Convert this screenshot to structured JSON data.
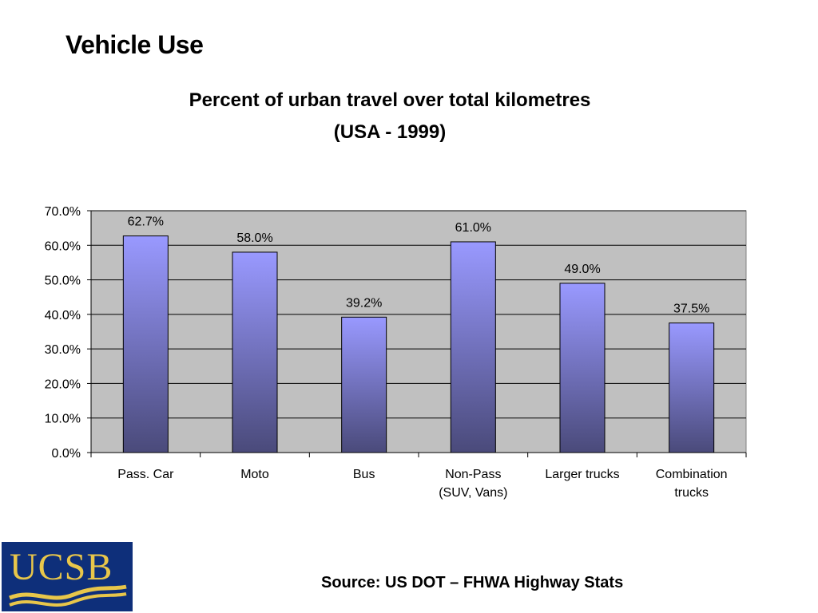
{
  "slide": {
    "title": "Vehicle Use"
  },
  "chart_data": {
    "type": "bar",
    "title_lines": [
      "Percent of urban travel over total kilometres",
      "(USA - 1999)"
    ],
    "categories": [
      "Pass. Car",
      "Moto",
      "Bus",
      "Non-Pass (SUV, Vans)",
      "Larger trucks",
      "Combination trucks"
    ],
    "category_label_lines": [
      [
        "Pass. Car"
      ],
      [
        "Moto"
      ],
      [
        "Bus"
      ],
      [
        "Non-Pass",
        "(SUV, Vans)"
      ],
      [
        "Larger trucks"
      ],
      [
        "Combination",
        "trucks"
      ]
    ],
    "values": [
      62.7,
      58.0,
      39.2,
      61.0,
      49.0,
      37.5
    ],
    "data_labels": [
      "62.7%",
      "58.0%",
      "39.2%",
      "61.0%",
      "49.0%",
      "37.5%"
    ],
    "yticks": [
      0,
      10,
      20,
      30,
      40,
      50,
      60,
      70
    ],
    "ytick_labels": [
      "0.0%",
      "10.0%",
      "20.0%",
      "30.0%",
      "40.0%",
      "50.0%",
      "60.0%",
      "70.0%"
    ],
    "ylim": [
      0,
      70
    ],
    "xlabel": "",
    "ylabel": "",
    "grid": true,
    "legend": false,
    "colors": {
      "plot_background": "#c0c0c0",
      "bar_top": "#9999ff",
      "bar_bottom": "#4a4a7a",
      "gridline": "#000000"
    }
  },
  "logo": {
    "text": "UCSB",
    "colors": {
      "background": "#0e2f7a",
      "accent": "#e8c64a"
    }
  },
  "footer": {
    "source": "Source: US DOT – FHWA Highway Stats"
  }
}
